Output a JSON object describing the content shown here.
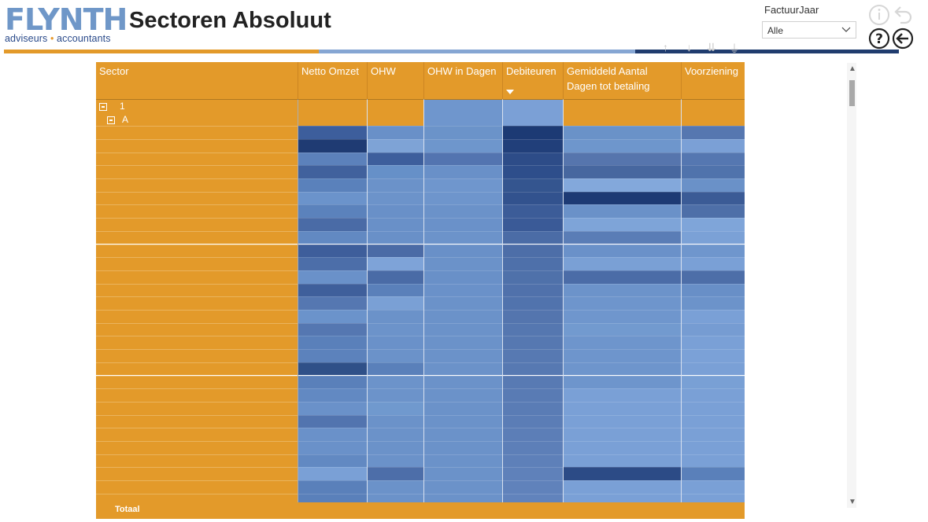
{
  "app": {
    "logo_main": "FLYNTH",
    "logo_sub_left": "adviseurs",
    "logo_sub_dot": "•",
    "logo_sub_right": "accountants",
    "title": "Sectoren Absoluut"
  },
  "filter": {
    "label": "FactuurJaar",
    "value": "Alle"
  },
  "icons": {
    "info": "info-icon",
    "undo": "undo-icon",
    "help": "help-icon",
    "back": "back-arrow-icon"
  },
  "colors": {
    "orange": "#e39a2a",
    "blue_bar": "#86a6d3",
    "navy_bar": "#203c6e"
  },
  "table": {
    "columns": [
      "Sector",
      "Netto Omzet",
      "OHW",
      "OHW in Dagen",
      "Debiteuren",
      "Gemiddeld Aantal Dagen tot betaling",
      "Voorziening"
    ],
    "sort_column": "Debiteuren",
    "sort_direction": "descending",
    "groups": [
      {
        "label": "1",
        "level": 0,
        "expanded": true
      },
      {
        "label": "A",
        "level": 1,
        "expanded": true
      }
    ],
    "total_label": "Totaal"
  },
  "heat": [
    [
      "#3d5e9c",
      "#6990c8",
      "#6b93c9",
      "#1c3a74",
      "#6a92c8",
      "#5677b0"
    ],
    [
      "#1f3b73",
      "#7ea3d6",
      "#6e96cc",
      "#213f7a",
      "#6e96cc",
      "#7ba0d6"
    ],
    [
      "#5c81bb",
      "#3d5e9c",
      "#5374b0",
      "#2d4c88",
      "#5675ad",
      "#5577b1"
    ],
    [
      "#41619d",
      "#6690c8",
      "#6990c8",
      "#2e4e8b",
      "#47679f",
      "#5073ac"
    ],
    [
      "#5a81bb",
      "#6b92c9",
      "#6f96cd",
      "#34558f",
      "#83a8db",
      "#6a91c8"
    ],
    [
      "#6b93cb",
      "#6c93ca",
      "#6e95cc",
      "#32528e",
      "#1d3a74",
      "#3b5b96"
    ],
    [
      "#5b82bc",
      "#6990c8",
      "#6b92c9",
      "#3c5c98",
      "#6a91c8",
      "#4e6fa8"
    ],
    [
      "#4a6ba6",
      "#6990c8",
      "#6a91c9",
      "#3a5a97",
      "#7ea4d8",
      "#7fa5d9"
    ],
    [
      "#6289c2",
      "#6990c8",
      "#6c93ca",
      "#4b6ca6",
      "#5a7db6",
      "#7ba1d6"
    ],
    [
      "#3e5e9b",
      "#4b6ba6",
      "#6990c8",
      "#4d6ea8",
      "#6a91c9",
      "#6f96cd"
    ],
    [
      "#4c6ea9",
      "#7ea3d8",
      "#6b92c9",
      "#4e70aa",
      "#7aa0d5",
      "#7aa0d6"
    ],
    [
      "#6a91c9",
      "#4a6ba6",
      "#6990c8",
      "#4f71aa",
      "#4b6ca7",
      "#4d6ea8"
    ],
    [
      "#3f5f9b",
      "#5a80ba",
      "#6a91c9",
      "#5071ab",
      "#6c93ca",
      "#688fc7"
    ],
    [
      "#5577b1",
      "#7aa0d5",
      "#6b92c9",
      "#5173ad",
      "#6e95cc",
      "#6c93ca"
    ],
    [
      "#6b93cb",
      "#6b92c9",
      "#6b92c9",
      "#5475ae",
      "#6f96cd",
      "#7aa0d6"
    ],
    [
      "#5577b1",
      "#6c93ca",
      "#6b92c9",
      "#5577b0",
      "#729acf",
      "#769cd2"
    ],
    [
      "#5a80ba",
      "#6a91c9",
      "#6b92c9",
      "#5678b1",
      "#6e95cc",
      "#7aa0d6"
    ],
    [
      "#5c82bc",
      "#6b92c9",
      "#6b92c9",
      "#5779b2",
      "#6e95cc",
      "#7ba1d7"
    ],
    [
      "#2f5088",
      "#5a80ba",
      "#6b92c9",
      "#5779b2",
      "#6e95cc",
      "#7aa0d6"
    ],
    [
      "#5a80ba",
      "#6c93ca",
      "#6b92c9",
      "#587ab3",
      "#6e95cc",
      "#79a0d5"
    ],
    [
      "#6289c2",
      "#6c93ca",
      "#6b92c9",
      "#597bb4",
      "#7aa0d6",
      "#7aa0d6"
    ],
    [
      "#6a91c9",
      "#7099ce",
      "#6b92c9",
      "#5a7cb5",
      "#7aa0d6",
      "#7aa0d6"
    ],
    [
      "#5274af",
      "#6b92c9",
      "#6b92c9",
      "#5b7db6",
      "#7aa0d6",
      "#7aa0d6"
    ],
    [
      "#6a91c9",
      "#6b92c9",
      "#6b92c9",
      "#5c7eb7",
      "#7aa0d6",
      "#7aa0d6"
    ],
    [
      "#6a91c9",
      "#6b92c9",
      "#6b92c9",
      "#5d7fb8",
      "#7aa0d6",
      "#7aa0d6"
    ],
    [
      "#6289c2",
      "#6b92c9",
      "#6b92c9",
      "#5e80b9",
      "#7aa0d6",
      "#7aa0d6"
    ],
    [
      "#7aa0d6",
      "#4d6ea9",
      "#6b92c9",
      "#5f81ba",
      "#2c4b86",
      "#5a80ba"
    ],
    [
      "#5a80ba",
      "#6b92c9",
      "#6b92c9",
      "#6082bb",
      "#7aa0d6",
      "#7aa0d6"
    ],
    [
      "#5a80ba",
      "#6b92c9",
      "#6b92c9",
      "#6183bc",
      "#7aa0d6",
      "#7aa0d6"
    ]
  ]
}
